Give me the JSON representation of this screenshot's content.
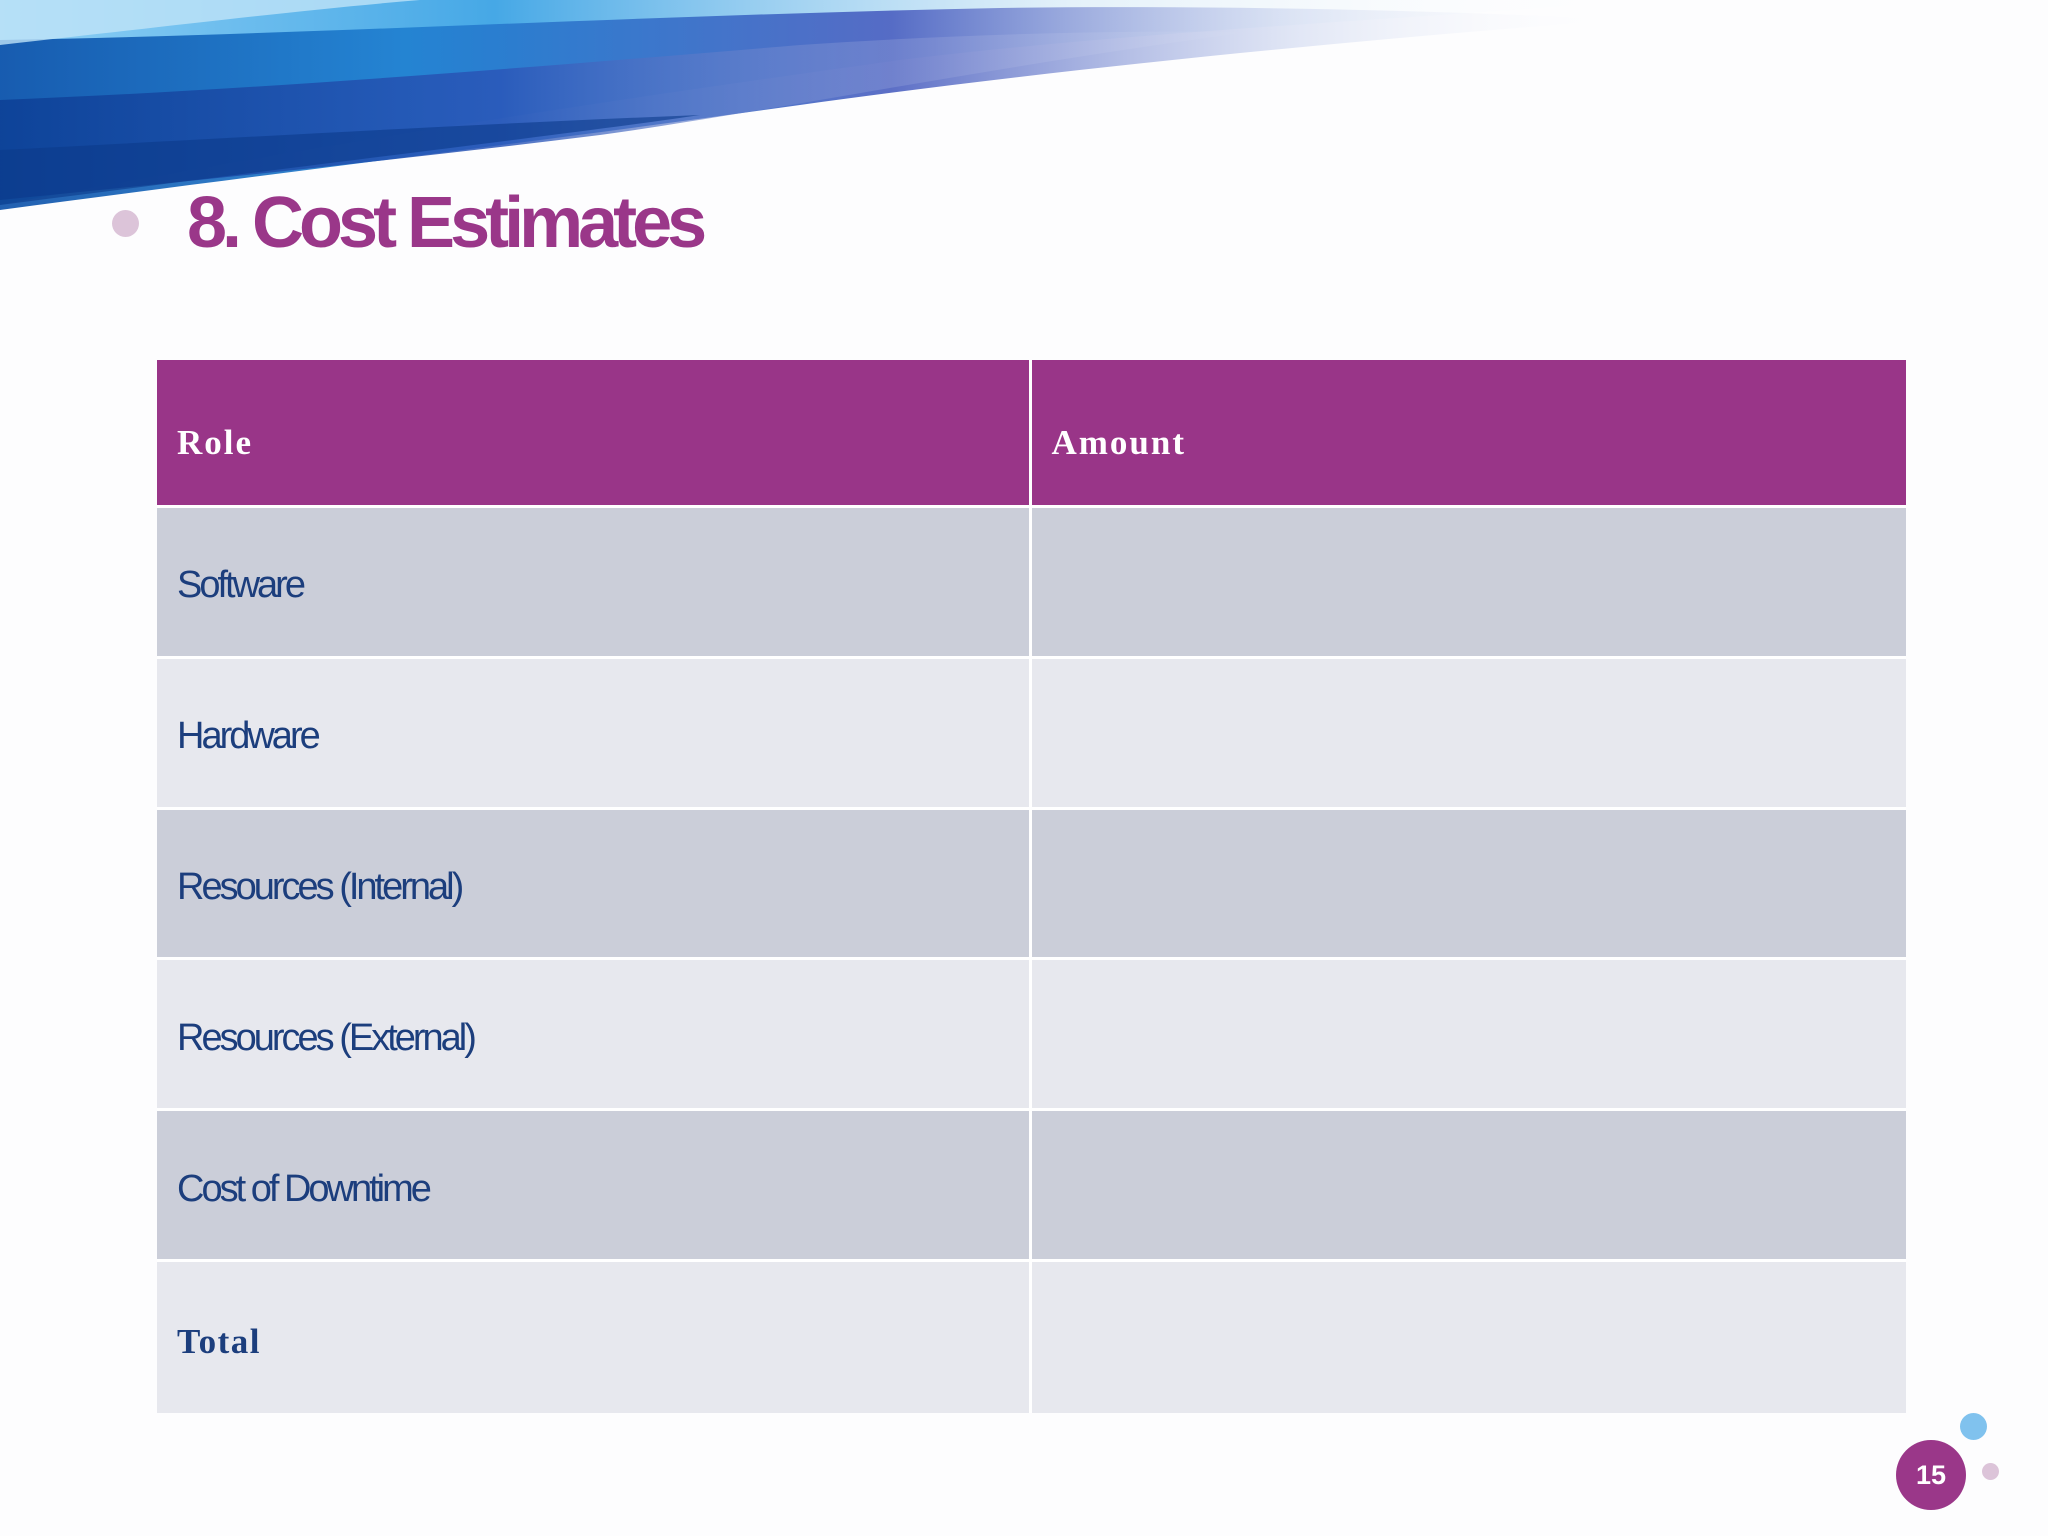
{
  "slide": {
    "title": "8. Cost Estimates",
    "page_number": "15"
  },
  "table": {
    "headers": [
      "Role",
      "Amount"
    ],
    "rows": [
      {
        "role": "Software",
        "amount": ""
      },
      {
        "role": "Hardware",
        "amount": ""
      },
      {
        "role": "Resources (Internal)",
        "amount": ""
      },
      {
        "role": "Resources (External)",
        "amount": ""
      },
      {
        "role": "Cost of Downtime",
        "amount": ""
      },
      {
        "role": "Total",
        "amount": ""
      }
    ]
  },
  "colors": {
    "accent_purple": "#993588",
    "row_dark": "#cbced9",
    "row_light": "#e7e8ee",
    "text_blue": "#1c3e7d",
    "dot_blue": "#80c2ee",
    "dot_pink": "#dcc4d9"
  },
  "icons": [
    "title-bullet-icon",
    "decorative-dot-icon"
  ]
}
